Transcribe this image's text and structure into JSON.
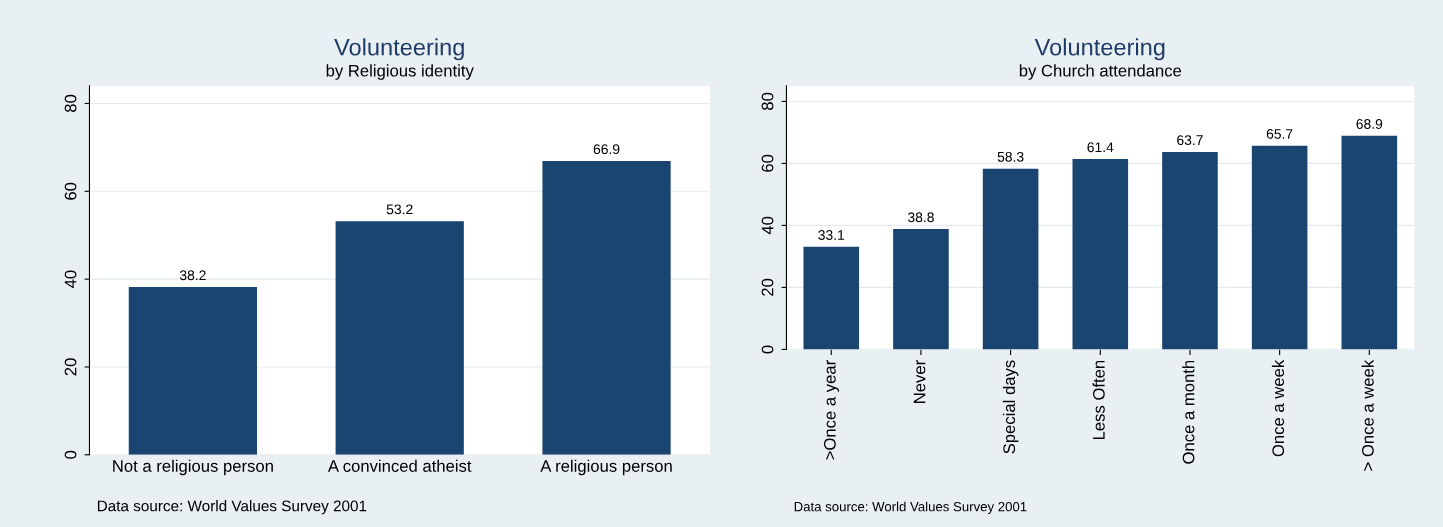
{
  "chart_data": [
    {
      "type": "bar",
      "title": "Volunteering",
      "subtitle": "by Religious identity",
      "categories": [
        "Not a religious person",
        "A convinced atheist",
        "A religious person"
      ],
      "values": [
        38.2,
        53.2,
        66.9
      ],
      "color": "#1a4570",
      "ylim": [
        0,
        84
      ],
      "yticks": [
        0,
        20,
        40,
        60,
        80
      ],
      "grid": "y",
      "data_labels": true,
      "annotations": [
        "Data source: World Values Survey 2001"
      ]
    },
    {
      "type": "bar",
      "title": "Volunteering",
      "subtitle": "by Church attendance",
      "categories": [
        ">Once a year",
        "Never",
        "Special days",
        "Less Often",
        "Once a month",
        "Once a week",
        "> Once a week"
      ],
      "values": [
        33.1,
        38.8,
        58.3,
        61.4,
        63.7,
        65.7,
        68.9
      ],
      "color": "#1a4570",
      "ylim": [
        0,
        85
      ],
      "yticks": [
        0,
        20,
        40,
        60,
        80
      ],
      "grid": "y",
      "data_labels": true,
      "annotations": [
        "Data source: World Values Survey 2001"
      ]
    }
  ]
}
